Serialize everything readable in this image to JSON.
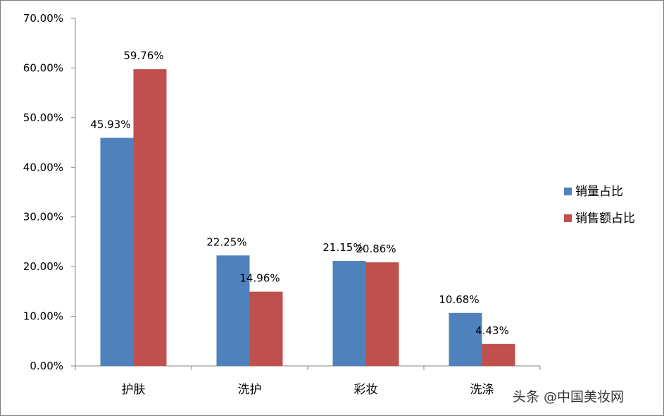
{
  "chart_data": {
    "type": "bar",
    "categories": [
      "护肤",
      "洗护",
      "彩妆",
      "洗涤"
    ],
    "series": [
      {
        "name": "销量占比",
        "values": [
          45.93,
          22.25,
          21.15,
          10.68
        ],
        "labels": [
          "45.93%",
          "22.25%",
          "21.15%",
          "10.68%"
        ],
        "color": "#4f81bd"
      },
      {
        "name": "销售额占比",
        "values": [
          59.76,
          14.96,
          20.86,
          4.43
        ],
        "labels": [
          "59.76%",
          "14.96%",
          "20.86%",
          "4.43%"
        ],
        "color": "#c0504d"
      }
    ],
    "ylim": [
      0,
      70
    ],
    "yticks": [
      0,
      10,
      20,
      30,
      40,
      50,
      60,
      70
    ],
    "ytick_labels": [
      "0.00%",
      "10.00%",
      "20.00%",
      "30.00%",
      "40.00%",
      "50.00%",
      "60.00%",
      "70.00%"
    ],
    "title": "",
    "xlabel": "",
    "ylabel": "",
    "grid": false,
    "legend_position": "right"
  },
  "watermark": "头条 @中国美妆网"
}
